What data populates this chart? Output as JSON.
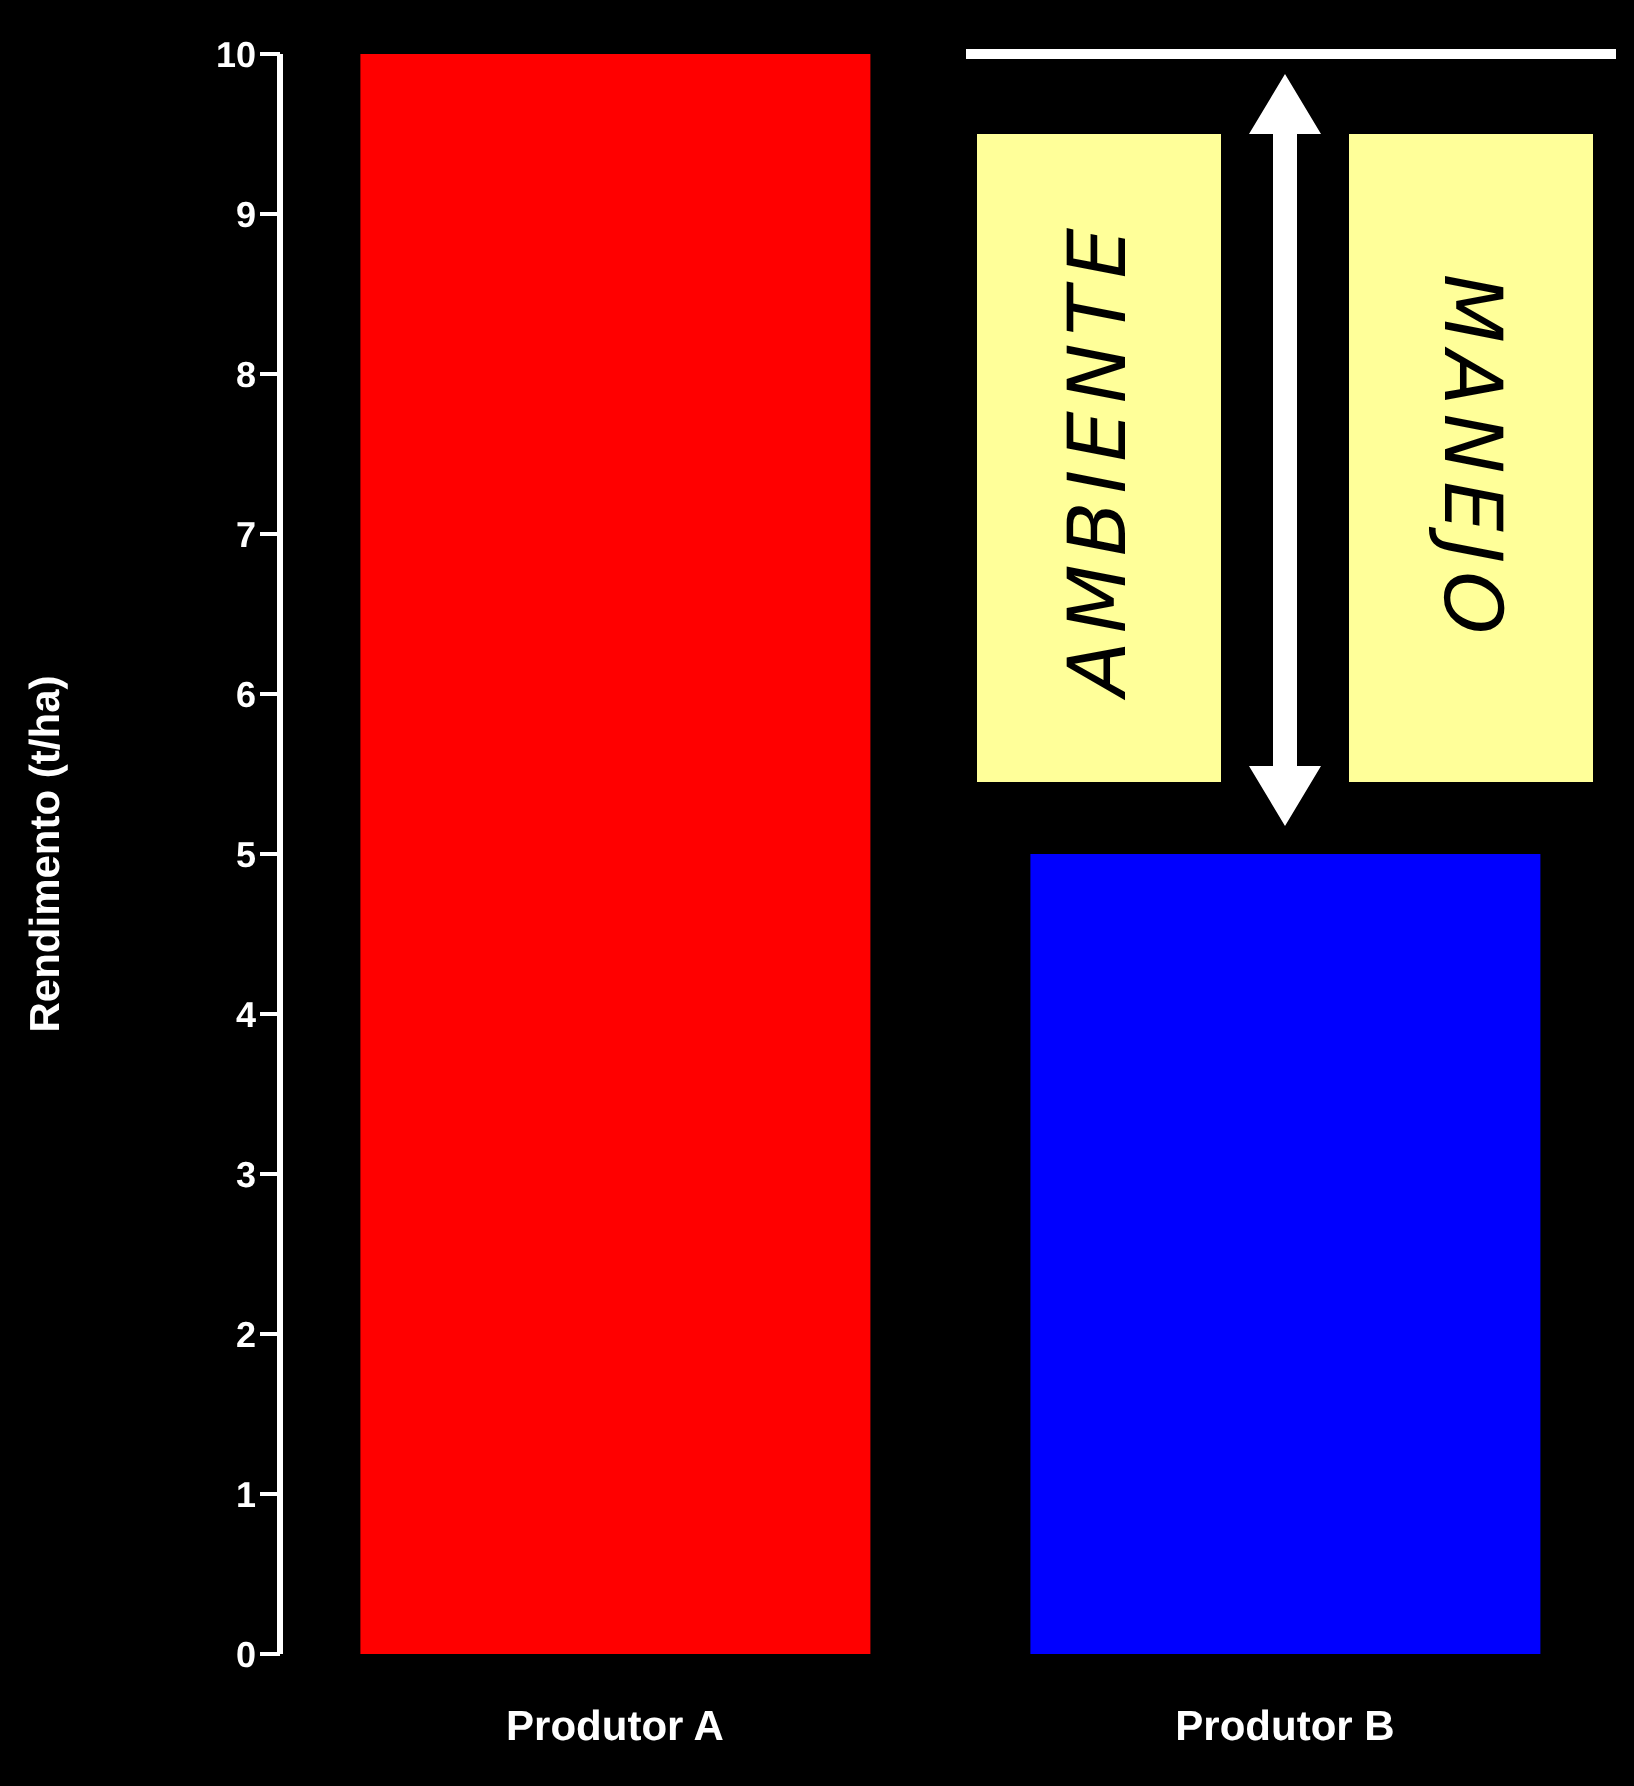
{
  "chart_data": {
    "type": "bar",
    "ylabel": "Rendimento (t/ha)",
    "categories": [
      "Produtor A",
      "Produtor B"
    ],
    "values": [
      10,
      5
    ],
    "colors": [
      "#ff0000",
      "#0000ff"
    ],
    "ylim": [
      0,
      10
    ],
    "yticks": [
      0,
      1,
      2,
      3,
      4,
      5,
      6,
      7,
      8,
      9,
      10
    ],
    "grid": false,
    "legend": false,
    "ref_lines": [
      {
        "axis": "y",
        "value": 10,
        "color": "#ffffff"
      }
    ],
    "annotations": [
      "AMBIENTE",
      "MANEJO"
    ]
  }
}
